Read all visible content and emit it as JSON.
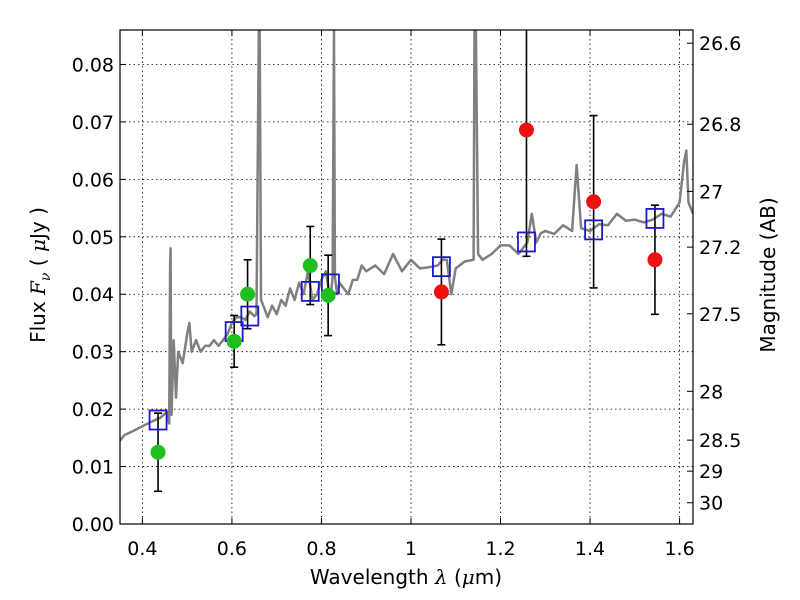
{
  "chart_data": {
    "type": "scatter",
    "xlabel": {
      "prefix": "Wavelength ",
      "symbol": "λ",
      "unit_open": " (",
      "mu": "μ",
      "unit_rest": "m)"
    },
    "ylabel": {
      "prefix": "Flux ",
      "symbol": "F",
      "sub": "ν",
      "unit_open": " ( ",
      "mu": "μ",
      "unit_rest": "Jy )"
    },
    "y2label": "Magnitude (AB)",
    "xlim": [
      0.35,
      1.63
    ],
    "ylim": [
      0.0,
      0.086
    ],
    "xticks": [
      0.4,
      0.6,
      0.8,
      1.0,
      1.2,
      1.4,
      1.6
    ],
    "xtick_labels": [
      "0.4",
      "0.6",
      "0.8",
      "1",
      "1.2",
      "1.4",
      "1.6"
    ],
    "yticks": [
      0.0,
      0.01,
      0.02,
      0.03,
      0.04,
      0.05,
      0.06,
      0.07,
      0.08
    ],
    "ytick_labels": [
      "0.00",
      "0.01",
      "0.02",
      "0.03",
      "0.04",
      "0.05",
      "0.06",
      "0.07",
      "0.08"
    ],
    "y2ticks": [
      {
        "label": "26.6",
        "flux": 0.0837
      },
      {
        "label": "26.8",
        "flux": 0.0696
      },
      {
        "label": "27",
        "flux": 0.0579
      },
      {
        "label": "27.2",
        "flux": 0.0482
      },
      {
        "label": "27.5",
        "flux": 0.0366
      },
      {
        "label": "28",
        "flux": 0.0231
      },
      {
        "label": "28.5",
        "flux": 0.0146
      },
      {
        "label": "29",
        "flux": 0.0092
      },
      {
        "label": "30",
        "flux": 0.0037
      }
    ],
    "grid": true,
    "colors": {
      "model": "#808080",
      "green": "#1fbf1f",
      "red": "#ee1111",
      "box": "#1a1acc",
      "err": "#000000"
    },
    "model_spectrum": {
      "x": [
        0.35,
        0.36,
        0.38,
        0.4,
        0.42,
        0.44,
        0.455,
        0.46,
        0.462,
        0.463,
        0.464,
        0.465,
        0.47,
        0.475,
        0.48,
        0.49,
        0.5,
        0.505,
        0.51,
        0.52,
        0.53,
        0.54,
        0.55,
        0.56,
        0.57,
        0.58,
        0.59,
        0.6,
        0.61,
        0.62,
        0.63,
        0.64,
        0.65,
        0.655,
        0.66,
        0.662,
        0.665,
        0.67,
        0.68,
        0.69,
        0.7,
        0.71,
        0.72,
        0.73,
        0.74,
        0.75,
        0.76,
        0.77,
        0.78,
        0.79,
        0.8,
        0.81,
        0.82,
        0.825,
        0.828,
        0.83,
        0.835,
        0.84,
        0.85,
        0.86,
        0.87,
        0.88,
        0.89,
        0.9,
        0.92,
        0.94,
        0.96,
        0.98,
        1.0,
        1.02,
        1.04,
        1.06,
        1.07,
        1.08,
        1.09,
        1.1,
        1.12,
        1.14,
        1.142,
        1.145,
        1.15,
        1.16,
        1.18,
        1.2,
        1.22,
        1.24,
        1.26,
        1.27,
        1.28,
        1.29,
        1.3,
        1.32,
        1.34,
        1.36,
        1.37,
        1.38,
        1.4,
        1.42,
        1.44,
        1.46,
        1.48,
        1.5,
        1.52,
        1.54,
        1.56,
        1.58,
        1.6,
        1.61,
        1.615,
        1.62,
        1.63
      ],
      "y": [
        0.0145,
        0.0155,
        0.0162,
        0.017,
        0.0178,
        0.0185,
        0.0195,
        0.0175,
        0.045,
        0.048,
        0.03,
        0.019,
        0.032,
        0.022,
        0.03,
        0.028,
        0.033,
        0.035,
        0.03,
        0.032,
        0.03,
        0.031,
        0.031,
        0.032,
        0.031,
        0.032,
        0.033,
        0.035,
        0.036,
        0.036,
        0.0355,
        0.037,
        0.0362,
        0.0365,
        0.086,
        0.086,
        0.039,
        0.038,
        0.036,
        0.038,
        0.0365,
        0.039,
        0.038,
        0.041,
        0.039,
        0.042,
        0.04,
        0.044,
        0.039,
        0.04,
        0.0425,
        0.044,
        0.039,
        0.043,
        0.086,
        0.043,
        0.04,
        0.042,
        0.041,
        0.04,
        0.0425,
        0.0425,
        0.045,
        0.044,
        0.045,
        0.0435,
        0.047,
        0.044,
        0.046,
        0.0445,
        0.0447,
        0.045,
        0.046,
        0.046,
        0.04,
        0.0445,
        0.0457,
        0.046,
        0.086,
        0.086,
        0.047,
        0.046,
        0.047,
        0.0485,
        0.0485,
        0.047,
        0.049,
        0.054,
        0.049,
        0.0506,
        0.051,
        0.0505,
        0.052,
        0.051,
        0.0625,
        0.0515,
        0.051,
        0.0522,
        0.052,
        0.054,
        0.0528,
        0.053,
        0.0525,
        0.053,
        0.054,
        0.0535,
        0.056,
        0.063,
        0.065,
        0.056,
        0.054
      ]
    },
    "green_points": [
      {
        "x": 0.435,
        "y": 0.0125,
        "err": 0.0068
      },
      {
        "x": 0.605,
        "y": 0.0318,
        "err": 0.0045
      },
      {
        "x": 0.635,
        "y": 0.04,
        "err": 0.006
      },
      {
        "x": 0.775,
        "y": 0.045,
        "err": 0.0068
      },
      {
        "x": 0.815,
        "y": 0.0398,
        "err": 0.007
      }
    ],
    "red_points": [
      {
        "x": 1.068,
        "y": 0.0404,
        "err": 0.0092
      },
      {
        "x": 1.258,
        "y": 0.0686,
        "err": 0.022
      },
      {
        "x": 1.408,
        "y": 0.0561,
        "err": 0.015
      },
      {
        "x": 1.545,
        "y": 0.046,
        "err": 0.0095
      }
    ],
    "model_boxes": [
      {
        "x": 0.435,
        "y": 0.0181
      },
      {
        "x": 0.605,
        "y": 0.0335
      },
      {
        "x": 0.64,
        "y": 0.0362
      },
      {
        "x": 0.775,
        "y": 0.0405
      },
      {
        "x": 0.82,
        "y": 0.0418
      },
      {
        "x": 1.068,
        "y": 0.0448
      },
      {
        "x": 1.258,
        "y": 0.0491
      },
      {
        "x": 1.408,
        "y": 0.0512
      },
      {
        "x": 1.545,
        "y": 0.0532
      }
    ]
  }
}
